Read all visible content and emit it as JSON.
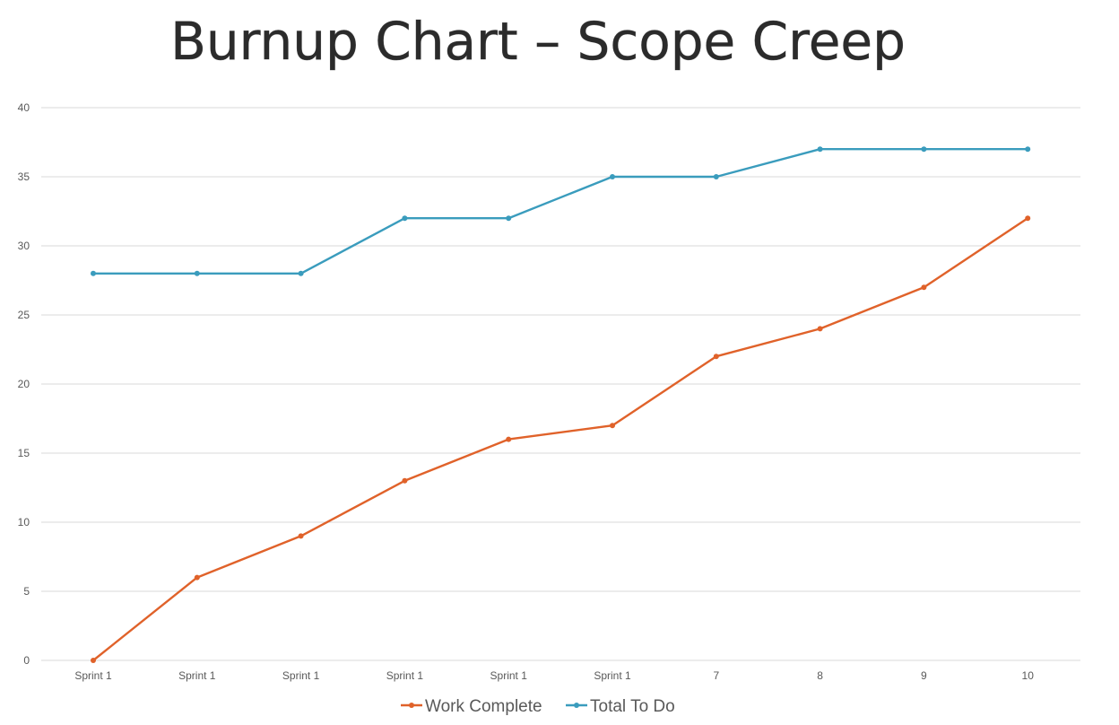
{
  "colors": {
    "work_complete": "#e0622a",
    "total_to_do": "#3a9cbd",
    "grid": "#d9d9d9",
    "tick_text": "#595959",
    "title": "#2b2b2b"
  },
  "chart_data": {
    "type": "line",
    "title": "Burnup Chart – Scope Creep",
    "xlabel": "",
    "ylabel": "",
    "categories": [
      "Sprint 1",
      "Sprint 1",
      "Sprint 1",
      "Sprint 1",
      "Sprint 1",
      "Sprint 1",
      "7",
      "8",
      "9",
      "10"
    ],
    "yticks": [
      "0",
      "5",
      "10",
      "15",
      "20",
      "25",
      "30",
      "35",
      "40"
    ],
    "ylim": [
      0,
      40
    ],
    "grid": true,
    "legend_position": "bottom",
    "series": [
      {
        "name": "Work Complete",
        "color": "#e0622a",
        "values": [
          0,
          6,
          9,
          13,
          16,
          17,
          22,
          24,
          27,
          32
        ]
      },
      {
        "name": "Total To Do",
        "color": "#3a9cbd",
        "values": [
          28,
          28,
          28,
          32,
          32,
          35,
          35,
          37,
          37,
          37
        ]
      }
    ]
  }
}
